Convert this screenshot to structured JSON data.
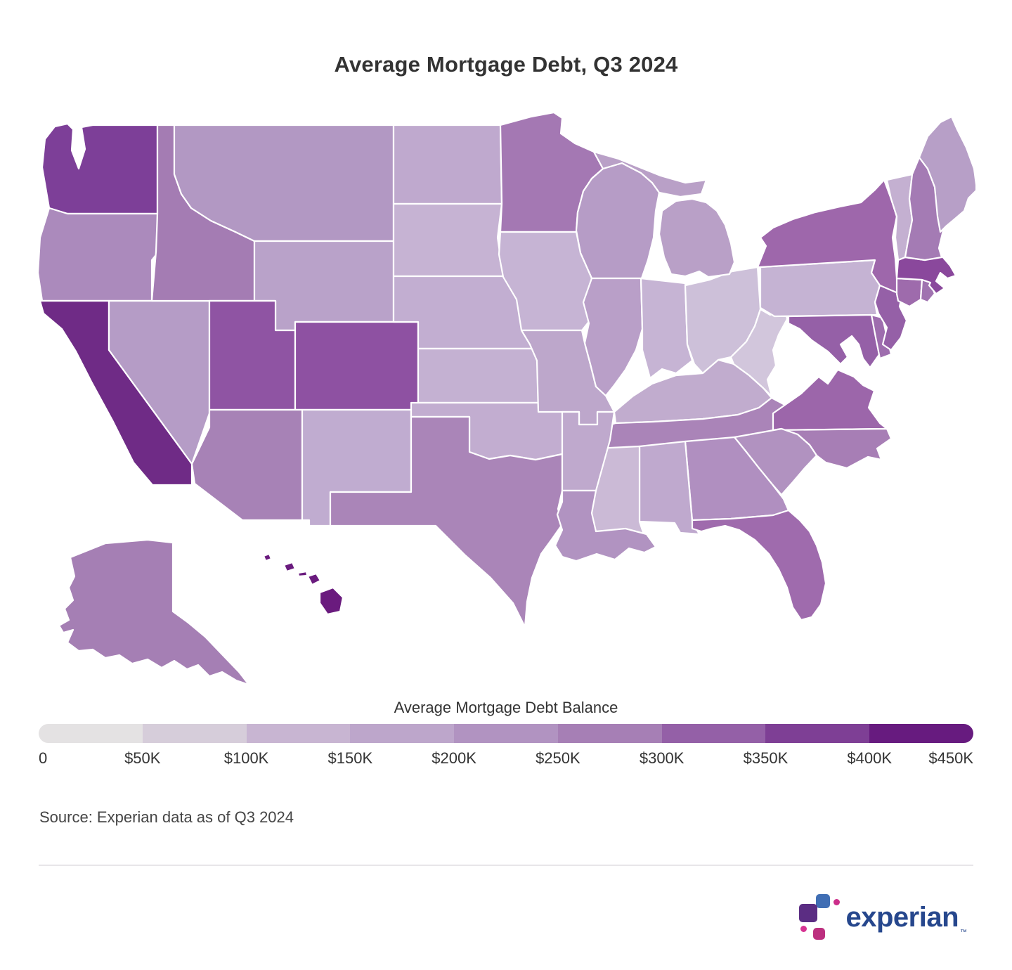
{
  "header": {
    "title": "Average Mortgage Debt, Q3 2024"
  },
  "legend": {
    "title": "Average Mortgage Debt Balance",
    "ticks": [
      "0",
      "$50K",
      "$100K",
      "$150K",
      "$200K",
      "$250K",
      "$300K",
      "$350K",
      "$400K",
      "$450K"
    ],
    "palette": [
      {
        "range": "$0–$50K",
        "color": "#e4e2e3"
      },
      {
        "range": "$50K–$100K",
        "color": "#d6cdda"
      },
      {
        "range": "$100K–$150K",
        "color": "#c8b5d2"
      },
      {
        "range": "$150K–$200K",
        "color": "#bda6cb"
      },
      {
        "range": "$200K–$250K",
        "color": "#b193c1"
      },
      {
        "range": "$250K–$300K",
        "color": "#a67fb5"
      },
      {
        "range": "$300K–$350K",
        "color": "#9460a7"
      },
      {
        "range": "$350K–$400K",
        "color": "#7e3f95"
      },
      {
        "range": "$400K–$450K",
        "color": "#671b7f"
      }
    ]
  },
  "footer": {
    "source": "Source: Experian data as of Q3 2024",
    "logo_text": "experian",
    "logo_tm": "™",
    "logo_colors": {
      "wordmark": "#26478d",
      "blue": "#406eb4",
      "crimson": "#cc2e8a",
      "purple": "#5b2d83",
      "magenta": "#d63392",
      "rose": "#bc2f7f"
    }
  },
  "chart_data": {
    "type": "choropleth-map",
    "region": "United States (50 states, AK and HI inset)",
    "title": "Average Mortgage Debt, Q3 2024",
    "colorbar_label": "Average Mortgage Debt Balance",
    "scale_range_usd_k": [
      0,
      450
    ],
    "note": "State values estimated from fill color against the legend scale; no numeric labels shown on map",
    "map_stroke": "#ffffff",
    "states": [
      {
        "code": "AL",
        "name": "Alabama",
        "value_est_k": 175,
        "color": "#bfa9ce"
      },
      {
        "code": "AK",
        "name": "Alaska",
        "value_est_k": 270,
        "color": "#a57fb4"
      },
      {
        "code": "AZ",
        "name": "Arizona",
        "value_est_k": 265,
        "color": "#a782b6"
      },
      {
        "code": "AR",
        "name": "Arkansas",
        "value_est_k": 170,
        "color": "#bfa9cd"
      },
      {
        "code": "CA",
        "name": "California",
        "value_est_k": 440,
        "color": "#6f2b86"
      },
      {
        "code": "CO",
        "name": "Colorado",
        "value_est_k": 330,
        "color": "#8e51a2"
      },
      {
        "code": "CT",
        "name": "Connecticut",
        "value_est_k": 300,
        "color": "#9e6bac"
      },
      {
        "code": "DE",
        "name": "Delaware",
        "value_est_k": 300,
        "color": "#9e6dae"
      },
      {
        "code": "FL",
        "name": "Florida",
        "value_est_k": 295,
        "color": "#9f6bad"
      },
      {
        "code": "GA",
        "name": "Georgia",
        "value_est_k": 235,
        "color": "#b08fc0"
      },
      {
        "code": "HI",
        "name": "Hawaii",
        "value_est_k": 425,
        "color": "#6a1b7e"
      },
      {
        "code": "ID",
        "name": "Idaho",
        "value_est_k": 275,
        "color": "#a47cb3"
      },
      {
        "code": "IL",
        "name": "Illinois",
        "value_est_k": 205,
        "color": "#b99fc8"
      },
      {
        "code": "IN",
        "name": "Indiana",
        "value_est_k": 150,
        "color": "#c6b4d4"
      },
      {
        "code": "IA",
        "name": "Iowa",
        "value_est_k": 150,
        "color": "#c6b4d4"
      },
      {
        "code": "KS",
        "name": "Kansas",
        "value_est_k": 155,
        "color": "#c4b1d2"
      },
      {
        "code": "KY",
        "name": "Kentucky",
        "value_est_k": 165,
        "color": "#c1acce"
      },
      {
        "code": "LA",
        "name": "Louisiana",
        "value_est_k": 225,
        "color": "#b193c1"
      },
      {
        "code": "ME",
        "name": "Maine",
        "value_est_k": 205,
        "color": "#b79fc7"
      },
      {
        "code": "MD",
        "name": "Maryland",
        "value_est_k": 320,
        "color": "#9560a7"
      },
      {
        "code": "MA",
        "name": "Massachusetts",
        "value_est_k": 350,
        "color": "#8a489c"
      },
      {
        "code": "MI",
        "name": "Michigan",
        "value_est_k": 195,
        "color": "#b9a0c7"
      },
      {
        "code": "MN",
        "name": "Minnesota",
        "value_est_k": 280,
        "color": "#a478b3"
      },
      {
        "code": "MS",
        "name": "Mississippi",
        "value_est_k": 130,
        "color": "#cbbad6"
      },
      {
        "code": "MO",
        "name": "Missouri",
        "value_est_k": 175,
        "color": "#bda7cb"
      },
      {
        "code": "MT",
        "name": "Montana",
        "value_est_k": 220,
        "color": "#b298c3"
      },
      {
        "code": "NE",
        "name": "Nebraska",
        "value_est_k": 160,
        "color": "#c2aed1"
      },
      {
        "code": "NV",
        "name": "Nevada",
        "value_est_k": 210,
        "color": "#b59cc6"
      },
      {
        "code": "NH",
        "name": "New Hampshire",
        "value_est_k": 275,
        "color": "#a47bb4"
      },
      {
        "code": "NJ",
        "name": "New Jersey",
        "value_est_k": 320,
        "color": "#9560a7"
      },
      {
        "code": "NM",
        "name": "New Mexico",
        "value_est_k": 165,
        "color": "#c0acd0"
      },
      {
        "code": "NY",
        "name": "New York",
        "value_est_k": 300,
        "color": "#9e67ab"
      },
      {
        "code": "NC",
        "name": "North Carolina",
        "value_est_k": 265,
        "color": "#a77eb5"
      },
      {
        "code": "ND",
        "name": "North Dakota",
        "value_est_k": 175,
        "color": "#bfa9ce"
      },
      {
        "code": "OH",
        "name": "Ohio",
        "value_est_k": 120,
        "color": "#cdc0d9"
      },
      {
        "code": "OK",
        "name": "Oklahoma",
        "value_est_k": 160,
        "color": "#c2add0"
      },
      {
        "code": "OR",
        "name": "Oregon",
        "value_est_k": 255,
        "color": "#ab8abc"
      },
      {
        "code": "PA",
        "name": "Pennsylvania",
        "value_est_k": 155,
        "color": "#c5b3d3"
      },
      {
        "code": "RI",
        "name": "Rhode Island",
        "value_est_k": 290,
        "color": "#a073b0"
      },
      {
        "code": "SC",
        "name": "South Carolina",
        "value_est_k": 225,
        "color": "#b192c0"
      },
      {
        "code": "SD",
        "name": "South Dakota",
        "value_est_k": 150,
        "color": "#c6b3d3"
      },
      {
        "code": "TN",
        "name": "Tennessee",
        "value_est_k": 250,
        "color": "#aa84b8"
      },
      {
        "code": "TX",
        "name": "Texas",
        "value_est_k": 250,
        "color": "#aa85b8"
      },
      {
        "code": "UT",
        "name": "Utah",
        "value_est_k": 330,
        "color": "#8f54a3"
      },
      {
        "code": "VT",
        "name": "Vermont",
        "value_est_k": 160,
        "color": "#c4b0d1"
      },
      {
        "code": "VA",
        "name": "Virginia",
        "value_est_k": 310,
        "color": "#9c66aa"
      },
      {
        "code": "WA",
        "name": "Washington",
        "value_est_k": 370,
        "color": "#7d3f98"
      },
      {
        "code": "WV",
        "name": "West Virginia",
        "value_est_k": 105,
        "color": "#d2c6dc"
      },
      {
        "code": "WI",
        "name": "Wisconsin",
        "value_est_k": 210,
        "color": "#b69cc6"
      },
      {
        "code": "WY",
        "name": "Wyoming",
        "value_est_k": 195,
        "color": "#b9a2c9"
      }
    ]
  }
}
